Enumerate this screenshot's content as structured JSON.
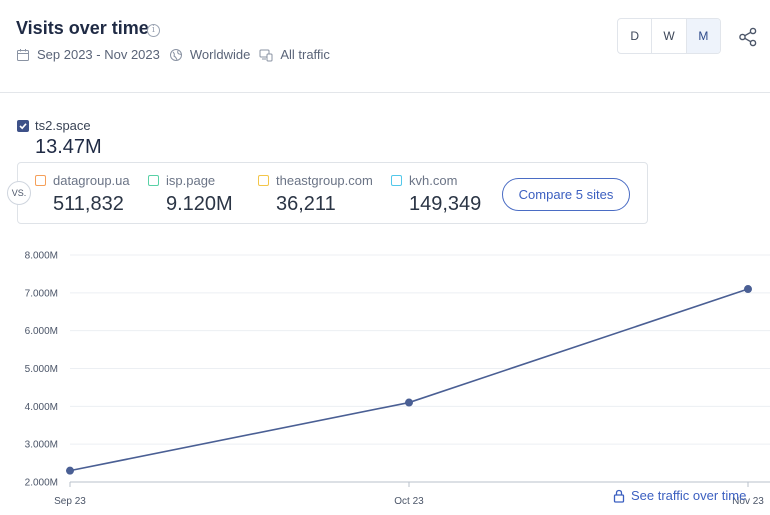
{
  "header": {
    "title": "Visits over time",
    "date_range": "Sep 2023 - Nov 2023",
    "region": "Worldwide",
    "traffic": "All traffic"
  },
  "period_buttons": [
    "D",
    "W",
    "M"
  ],
  "active_period": "M",
  "main_site": {
    "name": "ts2.space",
    "value": "13.47M",
    "color": "#3e5188"
  },
  "vs_label": "VS.",
  "competitors": [
    {
      "name": "datagroup.ua",
      "value": "511,832",
      "color": "#f5a05a"
    },
    {
      "name": "isp.page",
      "value": "9.120M",
      "color": "#59d1a6"
    },
    {
      "name": "theastgroup.com",
      "value": "36,211",
      "color": "#f3c64a"
    },
    {
      "name": "kvh.com",
      "value": "149,349",
      "color": "#52c8ea"
    }
  ],
  "compare_button": "Compare 5 sites",
  "see_traffic_link": "See traffic over time",
  "chart_data": {
    "type": "line",
    "x": [
      "Sep 23",
      "Oct 23",
      "Nov 23"
    ],
    "series": [
      {
        "name": "ts2.space",
        "values": [
          2300000,
          4100000,
          7100000
        ]
      }
    ],
    "ytick_labels": [
      "2.000M",
      "3.000M",
      "4.000M",
      "5.000M",
      "6.000M",
      "7.000M",
      "8.000M"
    ],
    "ylim": [
      2000000,
      8000000
    ],
    "grid": true,
    "line_color": "#4a5f94"
  }
}
